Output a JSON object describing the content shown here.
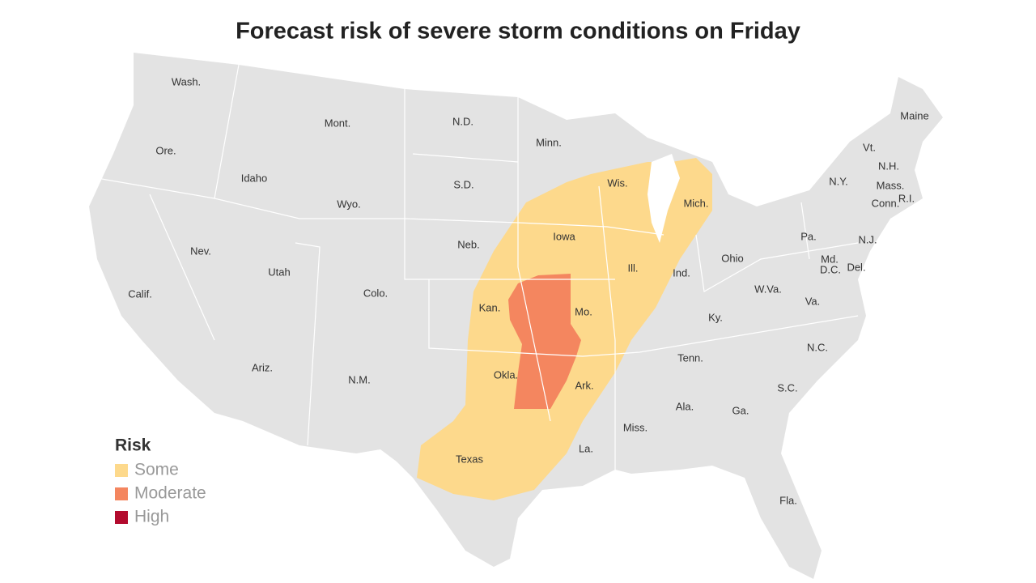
{
  "title": "Forecast risk of severe storm conditions on Friday",
  "states": [
    "Wash.",
    "Ore.",
    "Calif.",
    "Idaho",
    "Nev.",
    "Mont.",
    "Wyo.",
    "Utah",
    "Ariz.",
    "Colo.",
    "N.M.",
    "N.D.",
    "S.D.",
    "Neb.",
    "Kan.",
    "Okla.",
    "Texas",
    "Minn.",
    "Iowa",
    "Mo.",
    "Ark.",
    "La.",
    "Wis.",
    "Ill.",
    "Mich.",
    "Ind.",
    "Ohio",
    "Ky.",
    "Tenn.",
    "Miss.",
    "Ala.",
    "Ga.",
    "Fla.",
    "S.C.",
    "N.C.",
    "Va.",
    "W.Va.",
    "Pa.",
    "N.Y.",
    "Vt.",
    "N.H.",
    "Maine",
    "Mass.",
    "Conn.",
    "R.I.",
    "N.J.",
    "Del.",
    "Md.",
    "D.C."
  ],
  "legend": {
    "title": "Risk",
    "items": [
      {
        "name": "Some",
        "color": "#fdd98c"
      },
      {
        "name": "Moderate",
        "color": "#f4865f"
      },
      {
        "name": "High",
        "color": "#b30b2e"
      }
    ]
  }
}
